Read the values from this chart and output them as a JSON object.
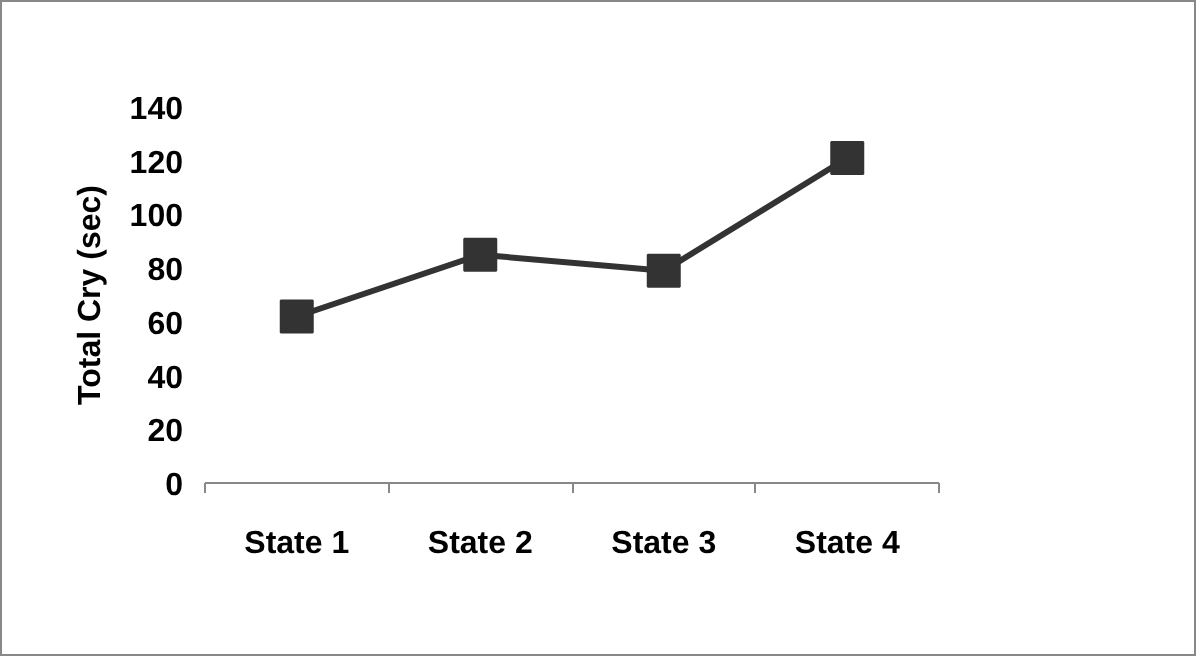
{
  "chart_data": {
    "type": "line",
    "ylabel": "Total Cry (sec)",
    "categories": [
      "State 1",
      "State 2",
      "State 3",
      "State 4"
    ],
    "series": [
      {
        "color": "#333333",
        "values": [
          62,
          85,
          79,
          121
        ]
      }
    ],
    "ylim": [
      0,
      140
    ],
    "yticks": [
      0,
      20,
      40,
      60,
      80,
      100,
      120,
      140
    ],
    "grid": false,
    "marker": "square",
    "line_style": "solid"
  }
}
